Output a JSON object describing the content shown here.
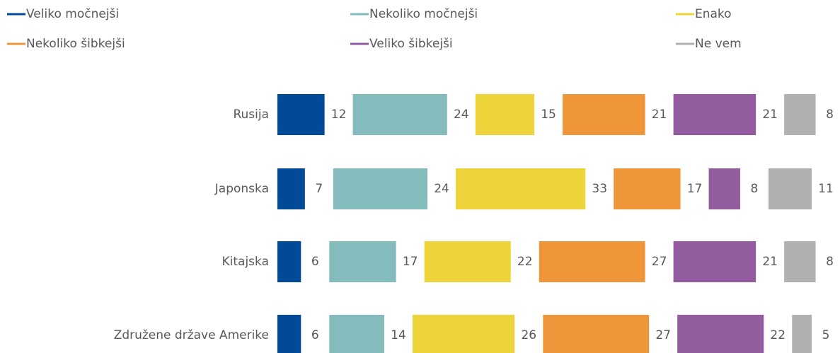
{
  "chart_data": {
    "type": "bar",
    "orientation": "horizontal",
    "stacked": true,
    "categories": [
      "Rusija",
      "Japonska",
      "Kitajska",
      "Združene države Amerike"
    ],
    "series": [
      {
        "name": "Veliko močnejši",
        "color": "#004a98",
        "values": [
          12,
          7,
          6,
          6
        ]
      },
      {
        "name": "Nekoliko močnejši",
        "color": "#84bbbd",
        "values": [
          24,
          24,
          17,
          14
        ]
      },
      {
        "name": "Enako",
        "color": "#ecd43a",
        "values": [
          15,
          33,
          22,
          26
        ]
      },
      {
        "name": "Nekoliko šibkejši",
        "color": "#f0963a",
        "values": [
          21,
          17,
          27,
          27
        ]
      },
      {
        "name": "Veliko šibkejši",
        "color": "#925c9f",
        "values": [
          21,
          8,
          21,
          22
        ]
      },
      {
        "name": "Ne vem",
        "color": "#b0b0b0",
        "values": [
          8,
          11,
          8,
          5
        ]
      }
    ],
    "legend": "top"
  }
}
